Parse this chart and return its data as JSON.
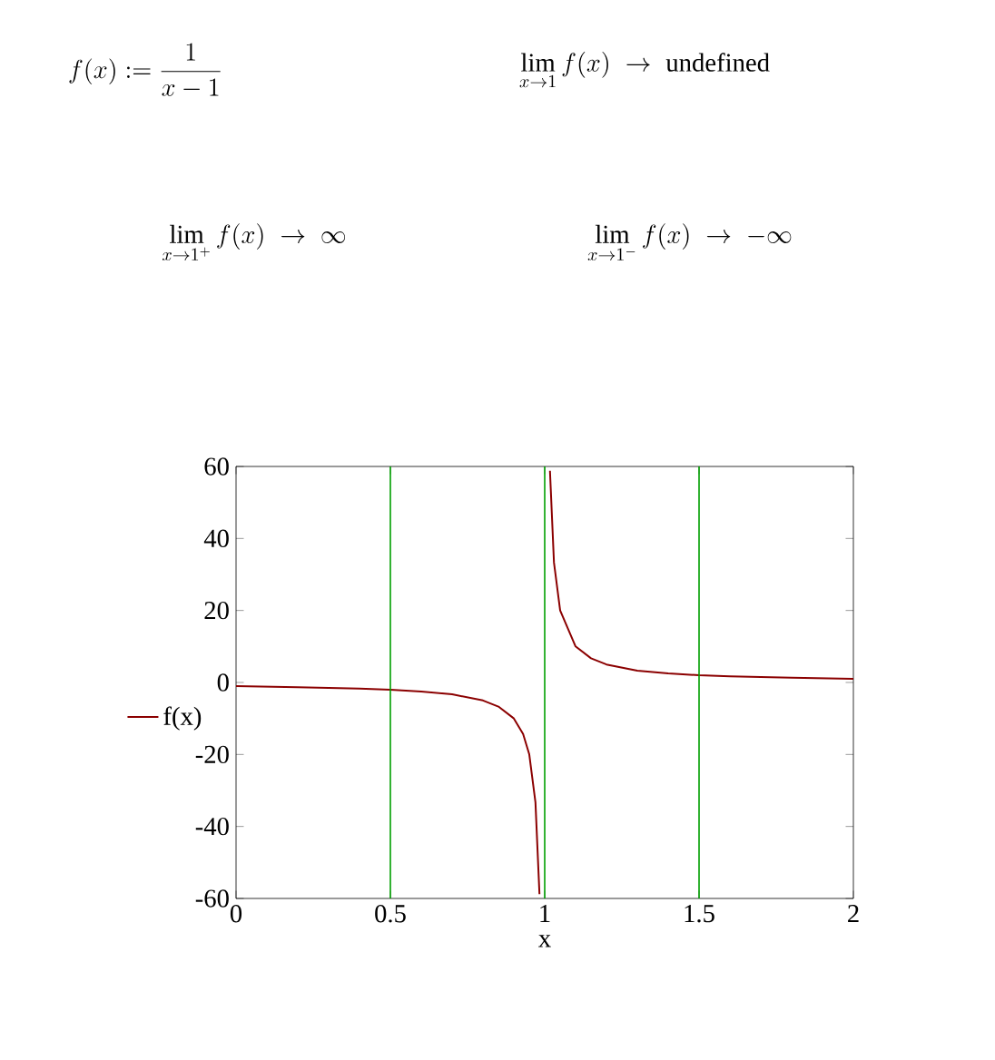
{
  "chart_data": {
    "type": "line",
    "xlabel": "x",
    "annotations": [
      "f(x) := \\frac{1}{x-1}",
      "\\lim_{x \\to 1} f(x) \\;\\to\\; \\mathrm{undefined}",
      "\\lim_{x \\to 1^{+}} f(x) \\;\\to\\; \\infty",
      "\\lim_{x \\to 1^{-}} f(x) \\;\\to\\; -\\infty"
    ],
    "series": [
      {
        "name": "f(x)",
        "color": "#8b0000",
        "x": [
          0,
          0.2,
          0.4,
          0.5,
          0.6,
          0.7,
          0.8,
          0.85,
          0.9,
          0.93,
          0.95,
          0.97,
          0.983,
          1,
          1.017,
          1.03,
          1.05,
          1.1,
          1.15,
          1.2,
          1.3,
          1.4,
          1.5,
          1.6,
          1.8,
          2
        ],
        "values": [
          -1,
          -1.3,
          -1.7,
          -2,
          -2.5,
          -3.3,
          -5,
          -6.7,
          -10,
          -14.3,
          -20,
          -33.3,
          -58.8,
          null,
          58.8,
          33.3,
          20,
          10,
          6.7,
          5,
          3.3,
          2.5,
          2,
          1.7,
          1.3,
          1
        ]
      }
    ],
    "xlim": [
      0,
      2
    ],
    "ylim": [
      -60,
      60
    ],
    "xticks": [
      0,
      0.5,
      1,
      1.5,
      2
    ],
    "yticks": [
      -60,
      -40,
      -20,
      0,
      20,
      40,
      60
    ],
    "ref_lines": [
      {
        "axis": "x",
        "value": 0.5,
        "color": "#00a000"
      },
      {
        "axis": "x",
        "value": 1,
        "color": "#00a000"
      },
      {
        "axis": "x",
        "value": 1.5,
        "color": "#00a000"
      }
    ],
    "grid": false,
    "legend": "left",
    "marker": "none",
    "line_style": "solid"
  }
}
